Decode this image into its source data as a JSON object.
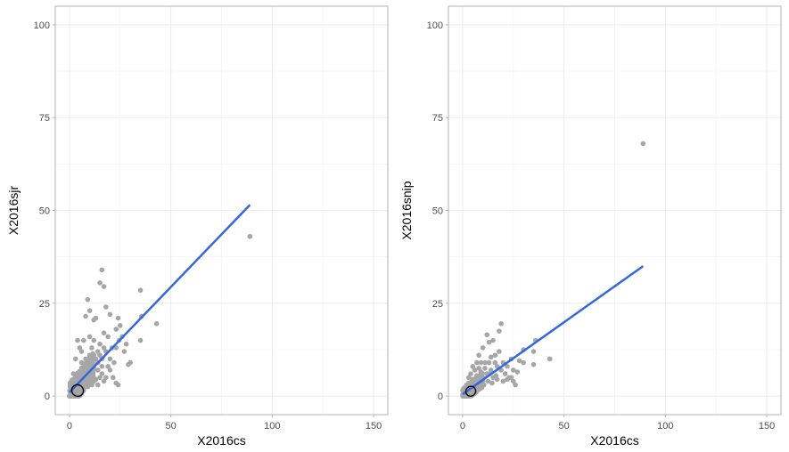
{
  "colors": {
    "point": "#a6a6a6",
    "fit_line": "#3366e6",
    "contour": "#000000",
    "grid": "#ebebeb",
    "frame": "#b3b3b3"
  },
  "chart_data": [
    {
      "type": "scatter",
      "xlabel": "X2016cs",
      "ylabel": "X2016sjr",
      "xlim": [
        -7,
        157
      ],
      "ylim": [
        -5,
        105
      ],
      "xticks": [
        0,
        50,
        100,
        150
      ],
      "yticks": [
        0,
        25,
        50,
        75,
        100
      ],
      "grid": true,
      "legend": "none",
      "points": [
        [
          89,
          43
        ],
        [
          43,
          19.5
        ],
        [
          35,
          28.5
        ],
        [
          35.5,
          21.5
        ],
        [
          35,
          15
        ],
        [
          30,
          9
        ],
        [
          29,
          8.5
        ],
        [
          25,
          19
        ],
        [
          24,
          21
        ],
        [
          23,
          18
        ],
        [
          24.5,
          15
        ],
        [
          23,
          13
        ],
        [
          22,
          9
        ],
        [
          24,
          3
        ],
        [
          23,
          3.5
        ],
        [
          21.5,
          5
        ],
        [
          16,
          34
        ],
        [
          15,
          30.5
        ],
        [
          17,
          29.5
        ],
        [
          20,
          22
        ],
        [
          18,
          24
        ],
        [
          12,
          20.5
        ],
        [
          13,
          21
        ],
        [
          8,
          21.5
        ],
        [
          10,
          23
        ],
        [
          9,
          26
        ],
        [
          17,
          17
        ],
        [
          19,
          16
        ],
        [
          15,
          14
        ],
        [
          12,
          15
        ],
        [
          18,
          12
        ],
        [
          16,
          10
        ],
        [
          20,
          10
        ],
        [
          21,
          13
        ],
        [
          14,
          12
        ],
        [
          11,
          13
        ],
        [
          10,
          16
        ],
        [
          7,
          15
        ],
        [
          6,
          12
        ],
        [
          5,
          13
        ],
        [
          4,
          15
        ],
        [
          3,
          10
        ],
        [
          2,
          6
        ],
        [
          1,
          4
        ],
        [
          6,
          9
        ],
        [
          8,
          10
        ],
        [
          10,
          9
        ],
        [
          12,
          8
        ],
        [
          14,
          7
        ],
        [
          16,
          6
        ],
        [
          18,
          5
        ],
        [
          20,
          7
        ],
        [
          9,
          6
        ],
        [
          7,
          5
        ],
        [
          5,
          4
        ],
        [
          3,
          3
        ],
        [
          4,
          2
        ],
        [
          6,
          3
        ],
        [
          8,
          4
        ],
        [
          10,
          5
        ],
        [
          12,
          4
        ],
        [
          14,
          3
        ],
        [
          2,
          1.5
        ],
        [
          1,
          1
        ],
        [
          0.5,
          0.5
        ],
        [
          3,
          1
        ],
        [
          5,
          1.5
        ],
        [
          7,
          2
        ],
        [
          9,
          2.5
        ],
        [
          11,
          3
        ],
        [
          13,
          4.5
        ],
        [
          15,
          5
        ],
        [
          17,
          4
        ],
        [
          2,
          4
        ],
        [
          4,
          5
        ],
        [
          6,
          6
        ],
        [
          8,
          7
        ],
        [
          10,
          11
        ],
        [
          12,
          11
        ],
        [
          14,
          9
        ],
        [
          16,
          8
        ],
        [
          28,
          14
        ],
        [
          27,
          12
        ],
        [
          26,
          16
        ],
        [
          1.5,
          2
        ],
        [
          2.5,
          2.5
        ],
        [
          3.5,
          4
        ],
        [
          4.5,
          3
        ],
        [
          5.5,
          5
        ],
        [
          6.5,
          7
        ],
        [
          7.5,
          8
        ],
        [
          8.5,
          9
        ],
        [
          9.5,
          7
        ],
        [
          11,
          6
        ],
        [
          13,
          10
        ],
        [
          15,
          11
        ],
        [
          17,
          13
        ],
        [
          19,
          8
        ]
      ],
      "fit_line": {
        "x": [
          0,
          89
        ],
        "y": [
          1,
          51.5
        ]
      },
      "contour": {
        "center": [
          4,
          1.5
        ],
        "rx": 2.8,
        "ry": 1.6,
        "angle_deg": 50
      }
    },
    {
      "type": "scatter",
      "xlabel": "X2016cs",
      "ylabel": "X2016snip",
      "xlim": [
        -7,
        157
      ],
      "ylim": [
        -5,
        105
      ],
      "xticks": [
        0,
        50,
        100,
        150
      ],
      "yticks": [
        0,
        25,
        50,
        75,
        100
      ],
      "grid": true,
      "legend": "none",
      "points": [
        [
          89,
          68
        ],
        [
          43,
          10
        ],
        [
          36,
          15
        ],
        [
          35,
          12
        ],
        [
          35,
          8.5
        ],
        [
          30,
          12.5
        ],
        [
          30,
          9
        ],
        [
          28,
          9.5
        ],
        [
          27,
          6.5
        ],
        [
          25,
          7
        ],
        [
          24,
          5
        ],
        [
          23,
          5
        ],
        [
          22,
          4.5
        ],
        [
          20,
          4
        ],
        [
          19,
          19.5
        ],
        [
          18,
          17.5
        ],
        [
          16,
          11
        ],
        [
          15,
          15
        ],
        [
          13,
          14.5
        ],
        [
          12,
          16.5
        ],
        [
          10,
          13
        ],
        [
          8,
          11
        ],
        [
          13,
          9
        ],
        [
          11,
          9
        ],
        [
          9,
          9
        ],
        [
          7,
          9
        ],
        [
          5,
          8
        ],
        [
          4,
          6
        ],
        [
          3,
          5
        ],
        [
          2,
          3
        ],
        [
          1,
          2
        ],
        [
          17,
          8
        ],
        [
          19,
          7
        ],
        [
          21,
          6
        ],
        [
          14,
          7
        ],
        [
          12,
          6
        ],
        [
          10,
          5
        ],
        [
          8,
          4
        ],
        [
          6,
          3
        ],
        [
          4,
          2
        ],
        [
          2,
          1
        ],
        [
          0.5,
          0.5
        ],
        [
          3,
          3.5
        ],
        [
          5,
          4.5
        ],
        [
          7,
          5.5
        ],
        [
          9,
          6.5
        ],
        [
          11,
          7.5
        ],
        [
          13,
          6
        ],
        [
          15,
          5
        ],
        [
          17,
          4.5
        ],
        [
          20,
          9
        ],
        [
          22,
          8
        ],
        [
          24,
          10
        ],
        [
          18,
          12
        ],
        [
          16,
          9
        ],
        [
          14,
          10.5
        ],
        [
          6,
          7
        ],
        [
          8,
          7.5
        ],
        [
          1.5,
          1
        ],
        [
          2.5,
          2
        ],
        [
          3.5,
          1.5
        ],
        [
          4.5,
          3
        ],
        [
          5.5,
          2.5
        ],
        [
          6.5,
          4
        ],
        [
          7.5,
          3.5
        ],
        [
          9.5,
          4
        ],
        [
          10.5,
          3
        ],
        [
          12.5,
          4
        ],
        [
          14.5,
          3.5
        ],
        [
          16.5,
          5.5
        ],
        [
          25,
          4
        ],
        [
          26,
          3
        ]
      ],
      "fit_line": {
        "x": [
          0,
          89
        ],
        "y": [
          0.5,
          35
        ]
      },
      "contour": {
        "center": [
          4,
          1.3
        ],
        "rx": 2.5,
        "ry": 1.3,
        "angle_deg": 50
      }
    }
  ]
}
